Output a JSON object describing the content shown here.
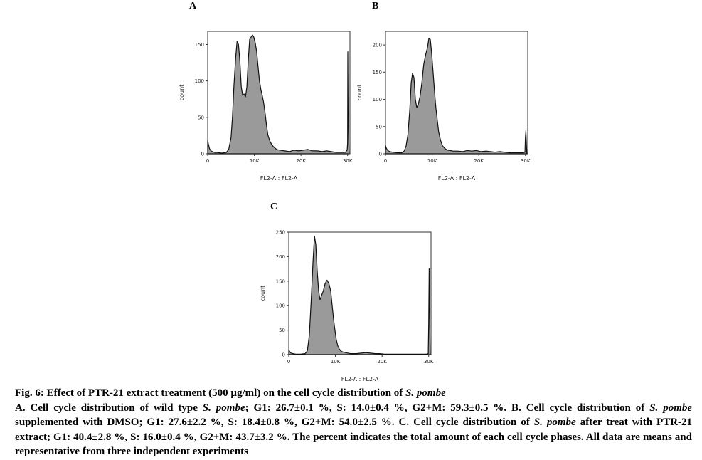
{
  "figure": {
    "number": "Fig. 6:",
    "title": "Effect of PTR-21 extract treatment (500 µg/ml) on the cell cycle distribution of",
    "title_species": "S. pombe",
    "caption": {
      "a_lead": "A. Cell cycle distribution of wild type",
      "a_species": "S. pombe",
      "a_values": "; G1: 26.7±0.1 %, S: 14.0±0.4 %, G2+M: 59.3±0.5 %. B. Cell cycle distribution of",
      "b_species": "S. pombe",
      "b_values": "supplemented with DMSO; G1: 27.6±2.2 %, S: 18.4±0.8 %, G2+M: 54.0±2.5 %. C. Cell cycle distribution of",
      "c_species": "S. pombe",
      "c_values": "after treat with PTR-21 extract; G1: 40.4±2.8 %, S: 16.0±0.4 %, G2+M: 43.7±3.2 %. The percent indicates the total amount of each cell cycle phases. All data are means and representative from three independent experiments"
    }
  },
  "colors": {
    "fill": "#9a9a9a",
    "stroke": "#111111",
    "axis": "#333333"
  },
  "chart_data": [
    {
      "panel": "A",
      "type": "area",
      "xlabel": "FL2-A : FL2-A",
      "ylabel": "count",
      "xlim": [
        0,
        30500
      ],
      "ylim": [
        0,
        168
      ],
      "xticks": [
        0,
        10000,
        20000,
        30000
      ],
      "xtick_labels": [
        "0",
        "10K",
        "20K",
        "30K"
      ],
      "yticks": [
        0,
        50,
        100,
        150
      ],
      "ytick_labels": [
        "0",
        "50",
        "100",
        "150"
      ],
      "series": [
        {
          "x": [
            0,
            200,
            400,
            700,
            1000,
            1500,
            2000,
            3000,
            4000,
            4500,
            5000,
            5300,
            5600,
            6000,
            6300,
            6600,
            6900,
            7200,
            7500,
            7800,
            8100,
            8400,
            8700,
            9000,
            9300,
            9600,
            9900,
            10200,
            10500,
            10800,
            11100,
            11400,
            11700,
            12000,
            12300,
            12600,
            12900,
            13300,
            13700,
            14200,
            14800,
            15500,
            16500,
            17500,
            18500,
            19500,
            20500,
            21500,
            22500,
            23500,
            24500,
            25500,
            26500,
            27500,
            28500,
            29500,
            29900,
            30000,
            30050,
            30100,
            30300
          ],
          "y": [
            18,
            12,
            7,
            4,
            3,
            2,
            2,
            1,
            2,
            6,
            22,
            50,
            90,
            132,
            154,
            150,
            128,
            92,
            80,
            82,
            78,
            92,
            128,
            157,
            160,
            163,
            160,
            152,
            140,
            120,
            100,
            88,
            80,
            70,
            56,
            40,
            26,
            18,
            13,
            9,
            6,
            5,
            4,
            3,
            5,
            4,
            5,
            6,
            4,
            4,
            3,
            4,
            3,
            2,
            2,
            2,
            5,
            15,
            140,
            60,
            1
          ]
        }
      ]
    },
    {
      "panel": "B",
      "type": "area",
      "xlabel": "FL2-A : FL2-A",
      "ylabel": "count",
      "xlim": [
        0,
        30500
      ],
      "ylim": [
        0,
        225
      ],
      "xticks": [
        0,
        10000,
        20000,
        30000
      ],
      "xtick_labels": [
        "0",
        "10K",
        "20K",
        "30K"
      ],
      "yticks": [
        0,
        50,
        100,
        150,
        200
      ],
      "ytick_labels": [
        "0",
        "50",
        "100",
        "150",
        "200"
      ],
      "series": [
        {
          "x": [
            0,
            200,
            500,
            900,
            1500,
            2500,
            3500,
            4000,
            4400,
            4800,
            5200,
            5500,
            5800,
            6100,
            6400,
            6700,
            7000,
            7400,
            7800,
            8200,
            8600,
            9000,
            9300,
            9600,
            9900,
            10200,
            10500,
            10800,
            11100,
            11400,
            11800,
            12200,
            12700,
            13200,
            13800,
            14500,
            15500,
            16500,
            17500,
            18500,
            19500,
            20500,
            21500,
            22500,
            23500,
            24500,
            25500,
            26500,
            27500,
            28500,
            29500,
            29900,
            30000,
            30100,
            30300
          ],
          "y": [
            15,
            10,
            6,
            4,
            3,
            2,
            2,
            5,
            14,
            35,
            80,
            130,
            148,
            140,
            100,
            85,
            90,
            105,
            130,
            165,
            182,
            195,
            212,
            210,
            185,
            150,
            115,
            85,
            62,
            40,
            25,
            15,
            10,
            7,
            6,
            5,
            5,
            4,
            6,
            5,
            6,
            4,
            5,
            4,
            3,
            4,
            3,
            2,
            2,
            2,
            2,
            3,
            30,
            42,
            1
          ]
        }
      ]
    },
    {
      "panel": "C",
      "type": "area",
      "xlabel": "FL2-A : FL2-A",
      "ylabel": "count",
      "xlim": [
        0,
        30500
      ],
      "ylim": [
        0,
        250
      ],
      "xticks": [
        0,
        10000,
        20000,
        30000
      ],
      "xtick_labels": [
        "0",
        "10K",
        "20K",
        "30K"
      ],
      "yticks": [
        0,
        50,
        100,
        150,
        200,
        250
      ],
      "ytick_labels": [
        "0",
        "50",
        "100",
        "150",
        "200",
        "250"
      ],
      "series": [
        {
          "x": [
            0,
            200,
            500,
            900,
            1500,
            2500,
            3500,
            4000,
            4400,
            4800,
            5200,
            5500,
            5800,
            6100,
            6400,
            6700,
            7000,
            7400,
            7800,
            8200,
            8600,
            9000,
            9300,
            9600,
            9900,
            10200,
            10500,
            10800,
            11100,
            11400,
            11800,
            12200,
            12700,
            13200,
            13800,
            14500,
            15500,
            16500,
            17500,
            18500,
            19500,
            20500,
            21500,
            22500,
            23500,
            24500,
            25500,
            26500,
            27500,
            28500,
            29500,
            29900,
            30000,
            30100,
            30300
          ],
          "y": [
            10,
            6,
            3,
            2,
            1,
            1,
            2,
            8,
            40,
            110,
            190,
            242,
            225,
            170,
            130,
            112,
            120,
            130,
            145,
            152,
            145,
            130,
            100,
            72,
            50,
            30,
            18,
            12,
            8,
            6,
            5,
            4,
            3,
            2,
            2,
            2,
            3,
            4,
            3,
            2,
            2,
            1,
            1,
            1,
            1,
            1,
            1,
            1,
            1,
            1,
            1,
            2,
            60,
            175,
            1
          ]
        }
      ]
    }
  ]
}
